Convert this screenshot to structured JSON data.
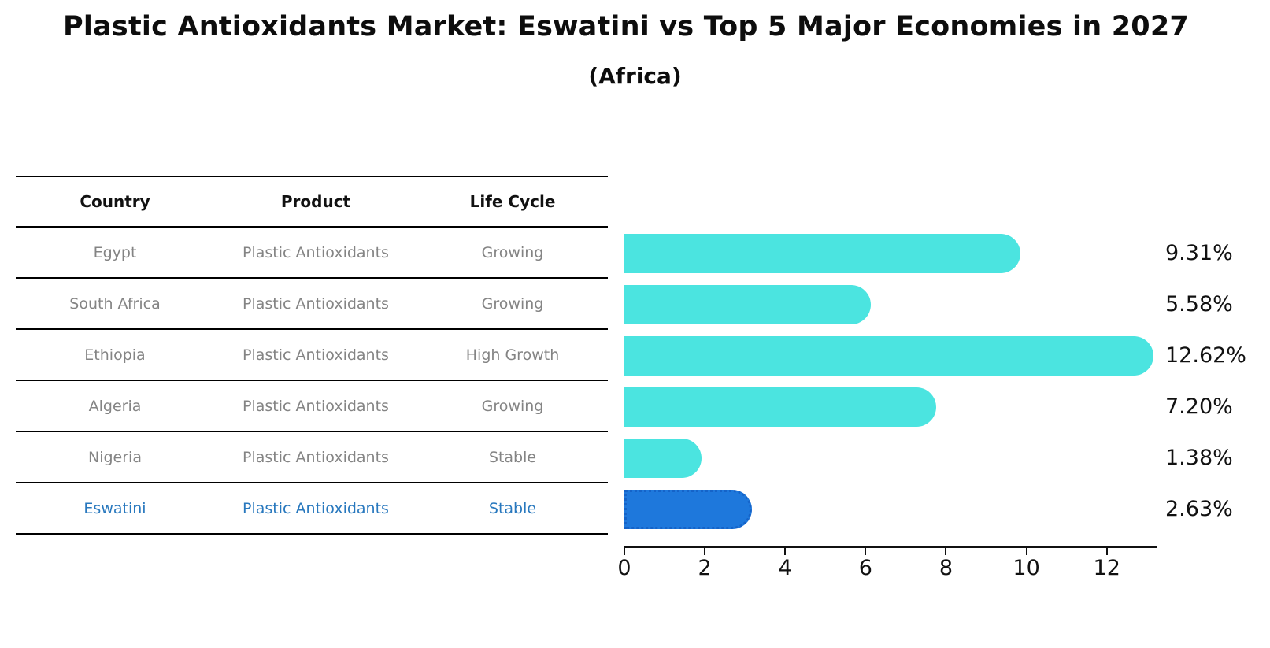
{
  "title": "Plastic Antioxidants Market: Eswatini vs Top 5 Major Economies in 2027",
  "subtitle": "(Africa)",
  "table": {
    "columns": [
      "Country",
      "Product",
      "Life Cycle"
    ],
    "rows": [
      {
        "country": "Egypt",
        "product": "Plastic Antioxidants",
        "life_cycle": "Growing",
        "highlight": false
      },
      {
        "country": "South Africa",
        "product": "Plastic Antioxidants",
        "life_cycle": "Growing",
        "highlight": false
      },
      {
        "country": "Ethiopia",
        "product": "Plastic Antioxidants",
        "life_cycle": "High Growth",
        "highlight": false
      },
      {
        "country": "Algeria",
        "product": "Plastic Antioxidants",
        "life_cycle": "Growing",
        "highlight": false
      },
      {
        "country": "Nigeria",
        "product": "Plastic Antioxidants",
        "life_cycle": "Stable",
        "highlight": false
      },
      {
        "country": "Eswatini",
        "product": "Plastic Antioxidants",
        "life_cycle": "Stable",
        "highlight": true
      }
    ]
  },
  "chart_data": {
    "type": "bar",
    "orientation": "horizontal",
    "title": "Plastic Antioxidants Market: Eswatini vs Top 5 Major Economies in 2027 (Africa)",
    "categories": [
      "Egypt",
      "South Africa",
      "Ethiopia",
      "Algeria",
      "Nigeria",
      "Eswatini"
    ],
    "values": [
      9.31,
      5.58,
      12.62,
      7.2,
      1.38,
      2.63
    ],
    "value_labels": [
      "9.31%",
      "5.58%",
      "12.62%",
      "7.20%",
      "1.38%",
      "2.63%"
    ],
    "x_ticks": [
      0,
      2,
      4,
      6,
      8,
      10,
      12
    ],
    "xlim": [
      0,
      13.2
    ],
    "grid": false,
    "legend": "none",
    "highlight_index": 5
  },
  "colors": {
    "bar_color": "#4BE4E0",
    "highlight_bar_color": "#1E78DC",
    "highlight_bar_border": "#1563C8",
    "highlight_text": "#2878BE",
    "table_text": "#848484",
    "header_text": "#111111",
    "axis_color": "#111111"
  }
}
